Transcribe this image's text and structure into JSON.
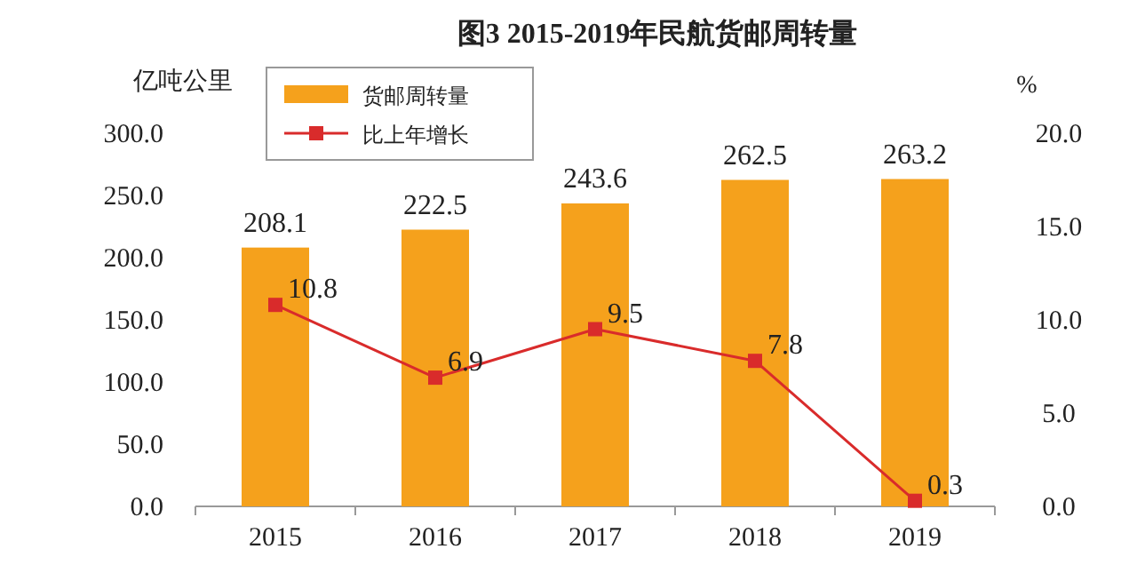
{
  "chart_data": {
    "type": "bar",
    "title": "图3 2015-2019年民航货邮周转量",
    "ylabel": "亿吨公里",
    "y2label": "%",
    "categories": [
      "2015",
      "2016",
      "2017",
      "2018",
      "2019"
    ],
    "series": [
      {
        "name": "货邮周转量",
        "color": "#f5a11c",
        "values": [
          208.1,
          222.5,
          243.6,
          262.5,
          263.2
        ]
      },
      {
        "name": "比上年增长",
        "type": "line",
        "axis": "y2",
        "color": "#d92b2b",
        "marker": "square",
        "values": [
          10.8,
          6.9,
          9.5,
          7.8,
          0.3
        ]
      }
    ],
    "ylim": [
      0,
      300
    ],
    "yticks": [
      {
        "value": 0,
        "label": "0.0"
      },
      {
        "value": 50,
        "label": "50.0"
      },
      {
        "value": 100,
        "label": "100.0"
      },
      {
        "value": 150,
        "label": "150.0"
      },
      {
        "value": 200,
        "label": "200.0"
      },
      {
        "value": 250,
        "label": "250.0"
      },
      {
        "value": 300,
        "label": "300.0"
      }
    ],
    "y2lim": [
      0,
      20
    ],
    "y2ticks": [
      {
        "value": 0,
        "label": "0.0"
      },
      {
        "value": 5,
        "label": "5.0"
      },
      {
        "value": 10,
        "label": "10.0"
      },
      {
        "value": 15,
        "label": "15.0"
      },
      {
        "value": 20,
        "label": "20.0"
      }
    ],
    "data_labels": true,
    "legend": "top left",
    "grid": false
  }
}
